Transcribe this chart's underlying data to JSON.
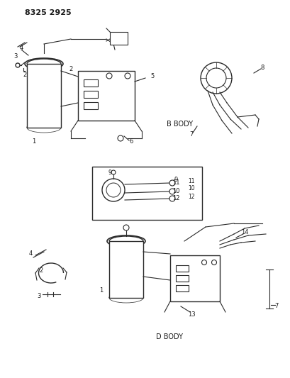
{
  "title": "8325 2925",
  "background_color": "#ffffff",
  "line_color": "#2a2a2a",
  "text_color": "#1a1a1a",
  "fig_width": 4.1,
  "fig_height": 5.33,
  "dpi": 100,
  "labels": {
    "b_body": "B BODY",
    "d_body": "D BODY"
  },
  "part_numbers": {
    "top_left_1": "1",
    "top_left_2": "2",
    "top_left_3": "3",
    "top_left_4": "4",
    "top_center_5": "5",
    "top_center_6": "6",
    "top_right_7": "7",
    "top_right_8": "8",
    "mid_box_9": "9",
    "mid_box_10": "10",
    "mid_box_11": "11",
    "mid_box_12": "12",
    "bot_1": "1",
    "bot_2": "2",
    "bot_3": "3",
    "bot_4": "4",
    "bot_7": "7",
    "bot_13": "13",
    "bot_14": "14"
  }
}
